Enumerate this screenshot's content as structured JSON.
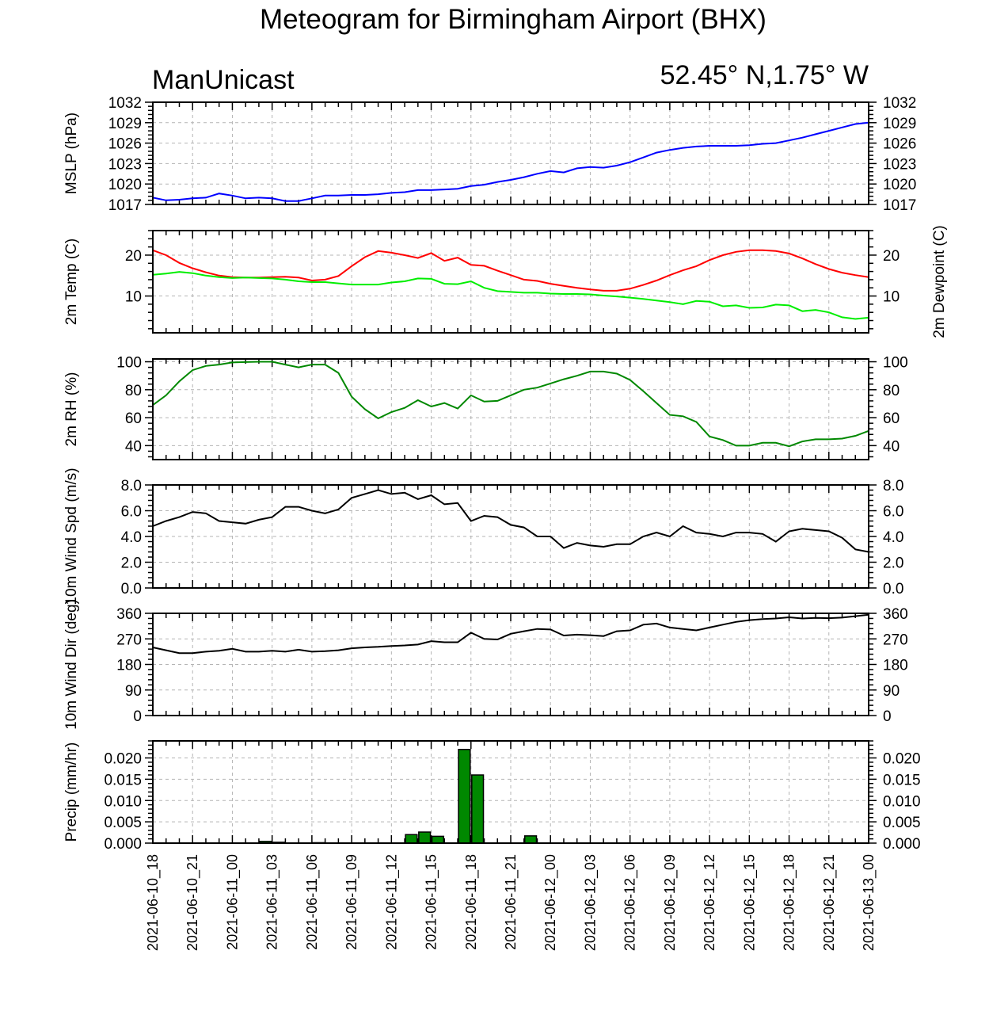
{
  "title": "Meteogram for Birmingham Airport (BHX)",
  "model": "ManUnicast",
  "location": "52.45° N,1.75° W",
  "time_labels": [
    "2021-06-10_18",
    "2021-06-10_21",
    "2021-06-11_00",
    "2021-06-11_03",
    "2021-06-11_06",
    "2021-06-11_09",
    "2021-06-11_12",
    "2021-06-11_15",
    "2021-06-11_18",
    "2021-06-11_21",
    "2021-06-12_00",
    "2021-06-12_03",
    "2021-06-12_06",
    "2021-06-12_09",
    "2021-06-12_12",
    "2021-06-12_15",
    "2021-06-12_18",
    "2021-06-12_21",
    "2021-06-13_00"
  ],
  "chart_data": [
    {
      "type": "line",
      "ylabel": "MSLP (hPa)",
      "ylim": [
        1017,
        1032
      ],
      "yticks": [
        "1017",
        "1020",
        "1023",
        "1026",
        "1029",
        "1032"
      ],
      "x_unit": "hours after 2021-06-10_18",
      "x": [
        0,
        1,
        2,
        3,
        4,
        5,
        6,
        7,
        8,
        9,
        10,
        11,
        12,
        13,
        14,
        15,
        16,
        17,
        18,
        19,
        20,
        21,
        22,
        23,
        24,
        25,
        26,
        27,
        28,
        29,
        30,
        31,
        32,
        33,
        34,
        35,
        36,
        37,
        38,
        39,
        40,
        41,
        42,
        43,
        44,
        45,
        46,
        47,
        48,
        49,
        50,
        51,
        52,
        53,
        54
      ],
      "series": [
        {
          "color": "#0000ff",
          "values": [
            1018.0,
            1017.6,
            1017.7,
            1017.9,
            1018.0,
            1018.6,
            1018.3,
            1017.9,
            1018.0,
            1017.9,
            1017.5,
            1017.5,
            1017.9,
            1018.3,
            1018.3,
            1018.4,
            1018.4,
            1018.5,
            1018.7,
            1018.8,
            1019.1,
            1019.1,
            1019.2,
            1019.3,
            1019.7,
            1019.9,
            1020.3,
            1020.6,
            1021.0,
            1021.5,
            1021.9,
            1021.7,
            1022.3,
            1022.5,
            1022.4,
            1022.7,
            1023.2,
            1023.9,
            1024.6,
            1025.0,
            1025.3,
            1025.5,
            1025.6,
            1025.6,
            1025.6,
            1025.7,
            1025.9,
            1026.0,
            1026.4,
            1026.8,
            1027.3,
            1027.8,
            1028.3,
            1028.8,
            1029.0
          ]
        }
      ]
    },
    {
      "type": "line",
      "ylabel": "2m Temp (C)",
      "y2label": "2m Dewpoint (C)",
      "ylim": [
        1,
        26
      ],
      "yticks": [
        "10",
        "20"
      ],
      "x_unit": "hours after 2021-06-10_18",
      "x": [
        0,
        1,
        2,
        3,
        4,
        5,
        6,
        7,
        8,
        9,
        10,
        11,
        12,
        13,
        14,
        15,
        16,
        17,
        18,
        19,
        20,
        21,
        22,
        23,
        24,
        25,
        26,
        27,
        28,
        29,
        30,
        31,
        32,
        33,
        34,
        35,
        36,
        37,
        38,
        39,
        40,
        41,
        42,
        43,
        44,
        45,
        46,
        47,
        48,
        49,
        50,
        51,
        52,
        53,
        54
      ],
      "series": [
        {
          "color": "#ff0000",
          "values": [
            21.2,
            20.0,
            18.1,
            16.8,
            15.8,
            15.0,
            14.6,
            14.5,
            14.5,
            14.6,
            14.7,
            14.5,
            13.8,
            14.0,
            14.9,
            17.3,
            19.5,
            21.0,
            20.6,
            20.0,
            19.3,
            20.5,
            18.6,
            19.4,
            17.6,
            17.4,
            16.2,
            15.1,
            14.0,
            13.7,
            13.0,
            12.5,
            12.0,
            11.6,
            11.3,
            11.3,
            11.8,
            12.7,
            13.8,
            15.1,
            16.3,
            17.3,
            18.8,
            20.0,
            20.8,
            21.2,
            21.2,
            21.0,
            20.4,
            19.2,
            17.8,
            16.6,
            15.7,
            15.1,
            14.6
          ]
        },
        {
          "color": "#00ee00",
          "values": [
            15.2,
            15.5,
            15.9,
            15.6,
            15.0,
            14.6,
            14.4,
            14.5,
            14.4,
            14.3,
            14.0,
            13.6,
            13.4,
            13.4,
            13.1,
            12.8,
            12.8,
            12.8,
            13.3,
            13.6,
            14.3,
            14.2,
            13.0,
            12.9,
            13.6,
            12.0,
            11.2,
            11.0,
            10.8,
            10.8,
            10.6,
            10.5,
            10.5,
            10.4,
            10.1,
            9.9,
            9.6,
            9.3,
            8.9,
            8.5,
            8.0,
            8.8,
            8.6,
            7.5,
            7.7,
            7.1,
            7.2,
            7.9,
            7.7,
            6.3,
            6.6,
            6.0,
            4.8,
            4.4,
            4.7
          ]
        }
      ]
    },
    {
      "type": "line",
      "ylabel": "2m RH (%)",
      "ylim": [
        30,
        102
      ],
      "yticks": [
        "40",
        "60",
        "80",
        "100"
      ],
      "x_unit": "hours after 2021-06-10_18",
      "x": [
        0,
        1,
        2,
        3,
        4,
        5,
        6,
        7,
        8,
        9,
        10,
        11,
        12,
        13,
        14,
        15,
        16,
        17,
        18,
        19,
        20,
        21,
        22,
        23,
        24,
        25,
        26,
        27,
        28,
        29,
        30,
        31,
        32,
        33,
        34,
        35,
        36,
        37,
        38,
        39,
        40,
        41,
        42,
        43,
        44,
        45,
        46,
        47,
        48,
        49,
        50,
        51,
        52,
        53,
        54
      ],
      "series": [
        {
          "color": "#008800",
          "values": [
            69,
            76,
            86,
            94,
            97,
            98,
            99.5,
            99.8,
            100,
            100,
            98,
            96,
            98,
            98,
            92,
            75,
            66,
            59.5,
            64,
            67,
            72.5,
            68,
            70.5,
            66.5,
            76,
            71.5,
            72,
            76,
            80,
            81.5,
            84.5,
            87.5,
            90,
            93,
            93,
            91.5,
            87,
            79,
            70.5,
            62,
            61,
            57,
            46.5,
            44,
            40,
            40,
            42,
            42,
            39.5,
            43,
            44.5,
            44.5,
            45,
            47,
            50.5
          ]
        }
      ]
    },
    {
      "type": "line",
      "ylabel": "10m Wind Spd (m/s)",
      "ylim": [
        0,
        8
      ],
      "yticks": [
        "0.0",
        "2.0",
        "4.0",
        "6.0",
        "8.0"
      ],
      "x_unit": "hours after 2021-06-10_18",
      "x": [
        0,
        1,
        2,
        3,
        4,
        5,
        6,
        7,
        8,
        9,
        10,
        11,
        12,
        13,
        14,
        15,
        16,
        17,
        18,
        19,
        20,
        21,
        22,
        23,
        24,
        25,
        26,
        27,
        28,
        29,
        30,
        31,
        32,
        33,
        34,
        35,
        36,
        37,
        38,
        39,
        40,
        41,
        42,
        43,
        44,
        45,
        46,
        47,
        48,
        49,
        50,
        51,
        52,
        53,
        54
      ],
      "series": [
        {
          "color": "#000000",
          "values": [
            4.8,
            5.2,
            5.5,
            5.9,
            5.8,
            5.2,
            5.1,
            5.0,
            5.3,
            5.5,
            6.3,
            6.3,
            6.0,
            5.8,
            6.1,
            7.0,
            7.3,
            7.6,
            7.3,
            7.4,
            6.9,
            7.2,
            6.5,
            6.6,
            5.2,
            5.6,
            5.5,
            4.9,
            4.7,
            4.0,
            4.0,
            3.1,
            3.5,
            3.3,
            3.2,
            3.4,
            3.4,
            4.0,
            4.3,
            4.0,
            4.8,
            4.3,
            4.2,
            4.0,
            4.3,
            4.3,
            4.2,
            3.6,
            4.4,
            4.6,
            4.5,
            4.4,
            3.9,
            3.0,
            2.8
          ]
        }
      ]
    },
    {
      "type": "line",
      "ylabel": "10m Wind Dir (deg)",
      "ylim": [
        0,
        360
      ],
      "yticks": [
        "0",
        "90",
        "180",
        "270",
        "360"
      ],
      "x_unit": "hours after 2021-06-10_18",
      "x": [
        0,
        1,
        2,
        3,
        4,
        5,
        6,
        7,
        8,
        9,
        10,
        11,
        12,
        13,
        14,
        15,
        16,
        17,
        18,
        19,
        20,
        21,
        22,
        23,
        24,
        25,
        26,
        27,
        28,
        29,
        30,
        31,
        32,
        33,
        34,
        35,
        36,
        37,
        38,
        39,
        40,
        41,
        42,
        43,
        44,
        45,
        46,
        47,
        48,
        49,
        50,
        51,
        52,
        53,
        54
      ],
      "series": [
        {
          "color": "#000000",
          "values": [
            240,
            230,
            220,
            220,
            225,
            228,
            235,
            225,
            225,
            228,
            225,
            232,
            225,
            227,
            230,
            237,
            240,
            242,
            245,
            247,
            250,
            262,
            258,
            258,
            292,
            270,
            268,
            288,
            297,
            305,
            303,
            282,
            285,
            283,
            280,
            297,
            300,
            320,
            324,
            310,
            305,
            300,
            310,
            320,
            330,
            336,
            340,
            342,
            346,
            342,
            344,
            343,
            345,
            350,
            355
          ]
        }
      ]
    },
    {
      "type": "bar",
      "ylabel": "Precip (mm/hr)",
      "ylim": [
        0,
        0.024
      ],
      "yticks": [
        "0.000",
        "0.005",
        "0.010",
        "0.015",
        "0.020"
      ],
      "x_unit": "hours after 2021-06-10_18",
      "x": [
        8,
        9,
        12,
        19,
        20,
        21,
        23,
        24,
        28
      ],
      "values": [
        0.0004,
        0.0002,
        0.0001,
        0.002,
        0.0026,
        0.0016,
        0.022,
        0.016,
        0.0017
      ],
      "color": "#008800"
    }
  ]
}
